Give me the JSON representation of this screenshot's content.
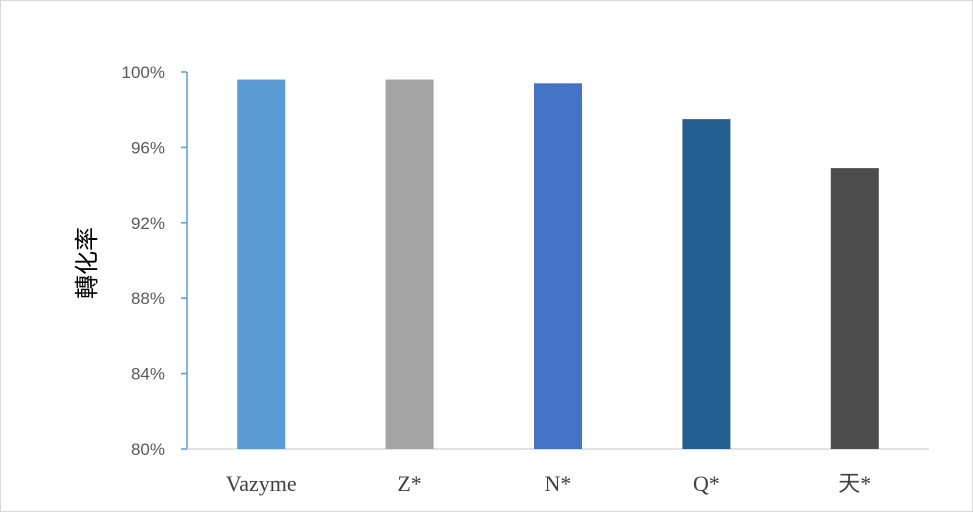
{
  "chart_data": {
    "type": "bar",
    "title": "",
    "xlabel": "",
    "ylabel": "轉化率",
    "categories": [
      "Vazyme",
      "Z*",
      "N*",
      "Q*",
      "天*"
    ],
    "values": [
      99.6,
      99.6,
      99.4,
      97.5,
      94.9
    ],
    "colors": [
      "#5b9bd5",
      "#a5a5a5",
      "#4472c4",
      "#255e91",
      "#4d4d4d"
    ],
    "ylim": [
      80,
      100
    ],
    "yticks": [
      80,
      84,
      88,
      92,
      96,
      100
    ],
    "ytick_labels": [
      "80%",
      "84%",
      "88%",
      "92%",
      "96%",
      "100%"
    ],
    "grid": false,
    "legend": "none"
  }
}
